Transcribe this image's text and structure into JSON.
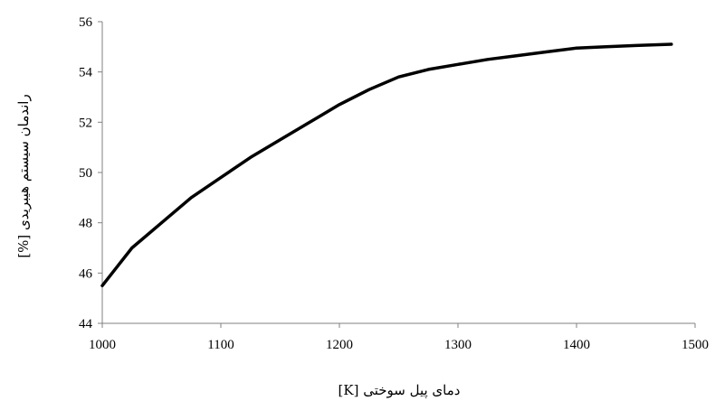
{
  "chart_data": {
    "type": "line",
    "title": "",
    "xlabel": "دمای پیل سوختی [K]",
    "ylabel": "راندمان سیستم هیبریدی [%]",
    "xlim": [
      1000,
      1500
    ],
    "ylim": [
      44,
      56
    ],
    "xticks": [
      1000,
      1100,
      1200,
      1300,
      1400,
      1500
    ],
    "yticks": [
      44,
      46,
      48,
      50,
      52,
      54,
      56
    ],
    "x_tick_labels": [
      "1000",
      "1100",
      "1200",
      "1300",
      "1400",
      "1500"
    ],
    "y_tick_labels": [
      "44",
      "46",
      "48",
      "50",
      "52",
      "54",
      "56"
    ],
    "grid": false,
    "legend": "none",
    "line_color": "#000000",
    "series": [
      {
        "x": [
          1000,
          1025,
          1050,
          1075,
          1100,
          1125,
          1150,
          1175,
          1200,
          1225,
          1250,
          1275,
          1300,
          1325,
          1350,
          1375,
          1400,
          1425,
          1450,
          1480
        ],
        "y": [
          45.5,
          47.0,
          48.0,
          49.0,
          49.8,
          50.6,
          51.3,
          52.0,
          52.7,
          53.3,
          53.8,
          54.1,
          54.3,
          54.5,
          54.65,
          54.8,
          54.95,
          55.0,
          55.05,
          55.1
        ]
      }
    ]
  }
}
